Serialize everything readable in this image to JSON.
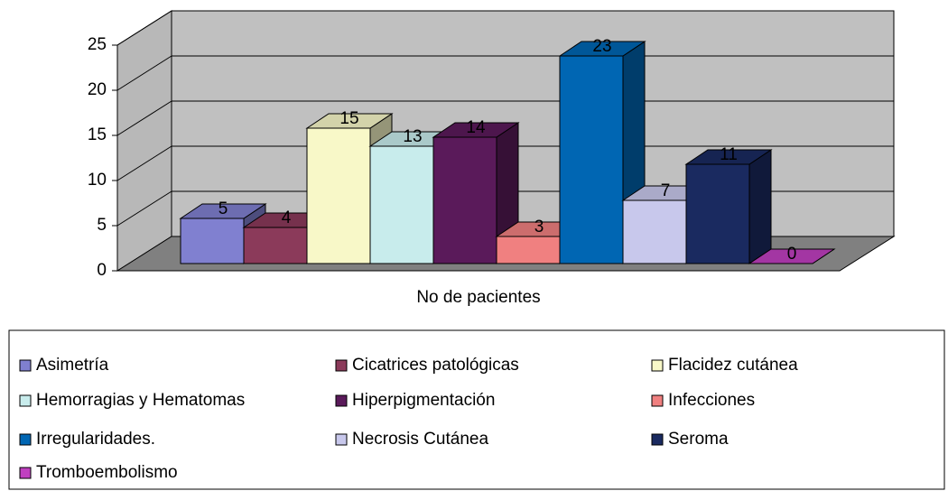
{
  "chart_data": {
    "type": "bar3d",
    "categories": [
      "No de pacientes"
    ],
    "series": [
      {
        "name": "Asimetría",
        "color": "#8080d0",
        "values": [
          5
        ]
      },
      {
        "name": "Cicatrices patológicas",
        "color": "#8b3a5a",
        "values": [
          4
        ]
      },
      {
        "name": "Flacidez cutánea",
        "color": "#f8f8c8",
        "values": [
          15
        ]
      },
      {
        "name": "Hemorragias y Hematomas",
        "color": "#c8ecec",
        "values": [
          13
        ]
      },
      {
        "name": "Hiperpigmentación",
        "color": "#5a1a5a",
        "values": [
          14
        ]
      },
      {
        "name": "Infecciones",
        "color": "#f08080",
        "values": [
          3
        ]
      },
      {
        "name": "Irregularidades.",
        "color": "#0066b3",
        "values": [
          23
        ]
      },
      {
        "name": "Necrosis Cutánea",
        "color": "#c8c8ec",
        "values": [
          7
        ]
      },
      {
        "name": "Seroma",
        "color": "#1a2a60",
        "values": [
          11
        ]
      },
      {
        "name": "Tromboembolismo",
        "color": "#c040c0",
        "values": [
          0
        ]
      }
    ],
    "ylim": [
      0,
      25
    ],
    "yticks": [
      0,
      5,
      10,
      15,
      20,
      25
    ],
    "grid": true,
    "legend": "bottom"
  }
}
